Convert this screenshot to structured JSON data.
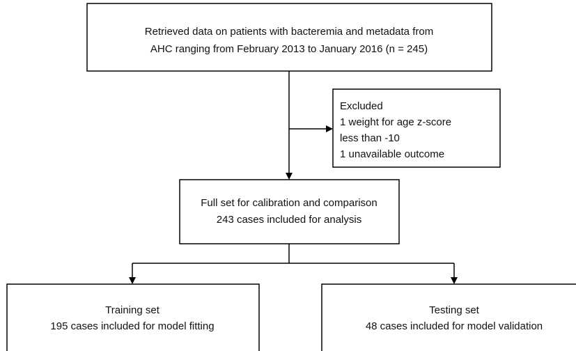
{
  "nodes": [
    {
      "lines": [
        "Retrieved data on patients with bacteremia and metadata from",
        "AHC ranging from February 2013 to January 2016 (n = 245)"
      ]
    },
    {
      "lines": [
        "Excluded",
        "1 weight for age z-score",
        "less than -10",
        "1 unavailable outcome"
      ]
    },
    {
      "lines": [
        "Full set for calibration and comparison",
        "243 cases included for analysis"
      ]
    },
    {
      "lines": [
        "Training set",
        "195 cases included for model fitting"
      ]
    },
    {
      "lines": [
        "Testing set",
        "48 cases included for model validation"
      ]
    }
  ]
}
